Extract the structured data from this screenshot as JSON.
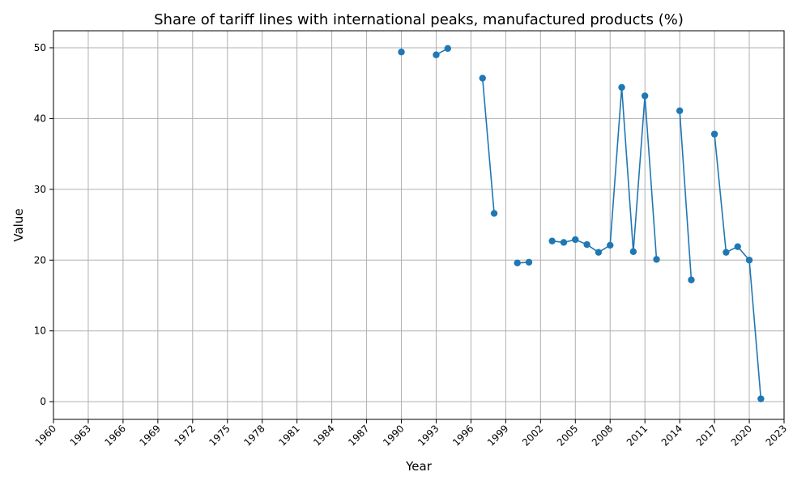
{
  "chart_data": {
    "type": "line",
    "title": "Share of tariff lines with international peaks, manufactured products (%)",
    "xlabel": "Year",
    "ylabel": "Value",
    "xlim": [
      1960,
      2023
    ],
    "ylim": [
      -2.5,
      52.4
    ],
    "x_ticks": [
      1960,
      1963,
      1966,
      1969,
      1972,
      1975,
      1978,
      1981,
      1984,
      1987,
      1990,
      1993,
      1996,
      1999,
      2002,
      2005,
      2008,
      2011,
      2014,
      2017,
      2020,
      2023
    ],
    "y_ticks": [
      0,
      10,
      20,
      30,
      40,
      50
    ],
    "grid": true,
    "x_tick_rotation_deg": 45,
    "colors": {
      "series": "#1f77b4",
      "grid": "#b0b0b0",
      "frame": "#000000"
    },
    "series": [
      {
        "points": [
          [
            1990,
            49.4
          ],
          [
            1991,
            null
          ],
          [
            1992,
            null
          ],
          [
            1993,
            49.0
          ],
          [
            1994,
            49.9
          ],
          [
            1995,
            null
          ],
          [
            1996,
            null
          ],
          [
            1997,
            45.7
          ],
          [
            1998,
            26.6
          ],
          [
            1999,
            null
          ],
          [
            2000,
            19.6
          ],
          [
            2001,
            19.7
          ],
          [
            2002,
            null
          ],
          [
            2003,
            22.7
          ],
          [
            2004,
            22.5
          ],
          [
            2005,
            22.9
          ],
          [
            2006,
            22.2
          ],
          [
            2007,
            21.1
          ],
          [
            2008,
            22.1
          ],
          [
            2009,
            44.4
          ],
          [
            2010,
            21.2
          ],
          [
            2011,
            43.2
          ],
          [
            2012,
            20.1
          ],
          [
            2013,
            null
          ],
          [
            2014,
            41.1
          ],
          [
            2015,
            17.2
          ],
          [
            2016,
            null
          ],
          [
            2017,
            37.8
          ],
          [
            2018,
            21.1
          ],
          [
            2019,
            21.9
          ],
          [
            2020,
            20.0
          ],
          [
            2021,
            0.4
          ]
        ]
      }
    ]
  }
}
